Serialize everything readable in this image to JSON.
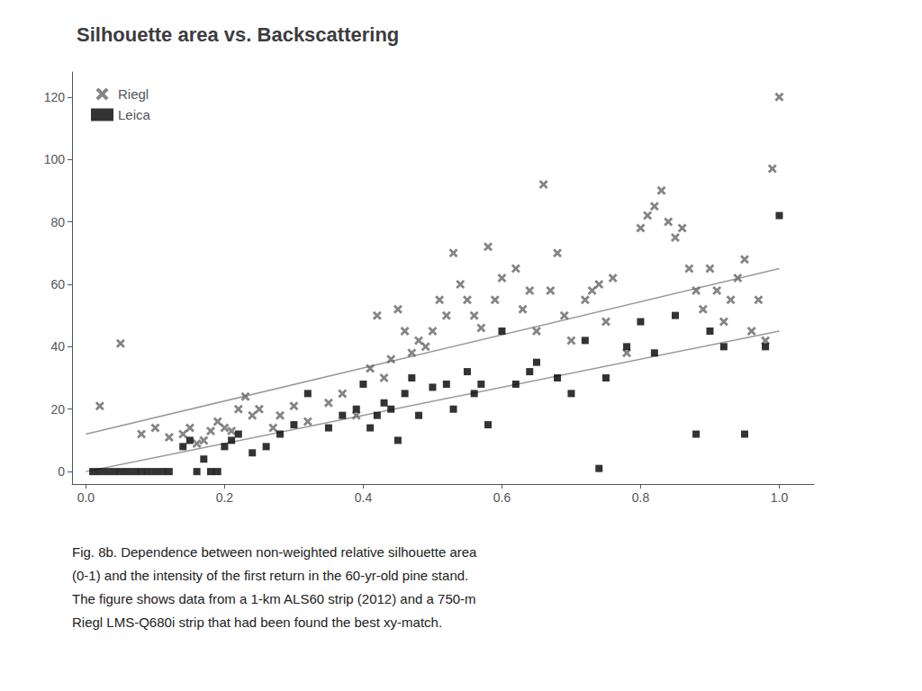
{
  "chart_data": {
    "type": "scatter",
    "title": "Silhouette area vs. Backscattering",
    "caption": [
      "Fig. 8b. Dependence between non-weighted relative silhouette area",
      "(0-1) and the intensity of the first return in the 60-yr-old pine stand.",
      "The figure shows data from a 1-km ALS60 strip (2012) and a 750-m",
      "Riegl LMS-Q680i strip that had been found the best xy-match."
    ],
    "xlim": [
      -0.02,
      1.05
    ],
    "ylim": [
      -4,
      128
    ],
    "xticks": [
      {
        "value": 0,
        "label": "0.0"
      },
      0.2,
      0.4,
      0.6,
      0.8,
      {
        "value": 1.0,
        "label": "1.0"
      }
    ],
    "yticks": [
      0,
      20,
      40,
      60,
      80,
      100,
      120
    ],
    "grid": false,
    "legend": "upper left",
    "series": [
      {
        "name": "Riegl",
        "type": "scatter",
        "marker": "x",
        "color": "#666666",
        "x": [
          0.02,
          0.05,
          0.08,
          0.1,
          0.12,
          0.14,
          0.15,
          0.16,
          0.17,
          0.18,
          0.19,
          0.2,
          0.21,
          0.22,
          0.23,
          0.24,
          0.25,
          0.27,
          0.28,
          0.3,
          0.32,
          0.35,
          0.37,
          0.39,
          0.41,
          0.42,
          0.43,
          0.44,
          0.45,
          0.46,
          0.47,
          0.48,
          0.49,
          0.5,
          0.51,
          0.52,
          0.53,
          0.54,
          0.55,
          0.56,
          0.57,
          0.58,
          0.59,
          0.6,
          0.62,
          0.63,
          0.64,
          0.65,
          0.66,
          0.67,
          0.68,
          0.69,
          0.7,
          0.72,
          0.73,
          0.74,
          0.75,
          0.76,
          0.78,
          0.8,
          0.81,
          0.82,
          0.83,
          0.84,
          0.85,
          0.86,
          0.87,
          0.88,
          0.89,
          0.9,
          0.91,
          0.92,
          0.93,
          0.94,
          0.95,
          0.96,
          0.97,
          0.98,
          0.99,
          1.0
        ],
        "values": [
          21,
          41,
          12,
          14,
          11,
          12,
          14,
          9,
          10,
          13,
          16,
          14,
          13,
          20,
          24,
          18,
          20,
          14,
          18,
          21,
          16,
          22,
          25,
          18,
          33,
          50,
          30,
          36,
          52,
          45,
          38,
          42,
          40,
          45,
          55,
          50,
          70,
          60,
          55,
          50,
          46,
          72,
          55,
          62,
          65,
          52,
          58,
          45,
          92,
          58,
          70,
          50,
          42,
          55,
          58,
          60,
          48,
          62,
          38,
          78,
          82,
          85,
          90,
          80,
          75,
          78,
          65,
          58,
          52,
          65,
          58,
          48,
          55,
          62,
          68,
          45,
          55,
          42,
          97,
          120
        ]
      },
      {
        "name": "Leica",
        "type": "scatter",
        "marker": "square",
        "color": "#000000",
        "x": [
          0.01,
          0.02,
          0.03,
          0.04,
          0.05,
          0.06,
          0.07,
          0.08,
          0.09,
          0.1,
          0.11,
          0.12,
          0.14,
          0.15,
          0.16,
          0.17,
          0.18,
          0.19,
          0.2,
          0.21,
          0.22,
          0.24,
          0.26,
          0.28,
          0.3,
          0.32,
          0.35,
          0.37,
          0.39,
          0.4,
          0.41,
          0.42,
          0.43,
          0.44,
          0.45,
          0.46,
          0.47,
          0.48,
          0.5,
          0.52,
          0.53,
          0.55,
          0.56,
          0.57,
          0.58,
          0.6,
          0.62,
          0.64,
          0.65,
          0.68,
          0.7,
          0.72,
          0.74,
          0.75,
          0.78,
          0.8,
          0.82,
          0.85,
          0.88,
          0.9,
          0.92,
          0.95,
          0.98,
          1.0
        ],
        "values": [
          0,
          0,
          0,
          0,
          0,
          0,
          0,
          0,
          0,
          0,
          0,
          0,
          8,
          10,
          0,
          4,
          0,
          0,
          8,
          10,
          12,
          6,
          8,
          12,
          15,
          25,
          14,
          18,
          20,
          28,
          14,
          18,
          22,
          20,
          10,
          25,
          30,
          18,
          27,
          28,
          20,
          32,
          25,
          28,
          15,
          45,
          28,
          32,
          35,
          30,
          25,
          42,
          1,
          30,
          40,
          48,
          38,
          50,
          12,
          45,
          40,
          12,
          40,
          82
        ]
      },
      {
        "type": "line",
        "line_style": "solid",
        "color": "#999999",
        "x": [
          0,
          1.0
        ],
        "values": [
          12,
          65
        ]
      },
      {
        "type": "line",
        "line_style": "solid",
        "color": "#999999",
        "x": [
          0,
          1.0
        ],
        "values": [
          0,
          45
        ]
      }
    ]
  }
}
